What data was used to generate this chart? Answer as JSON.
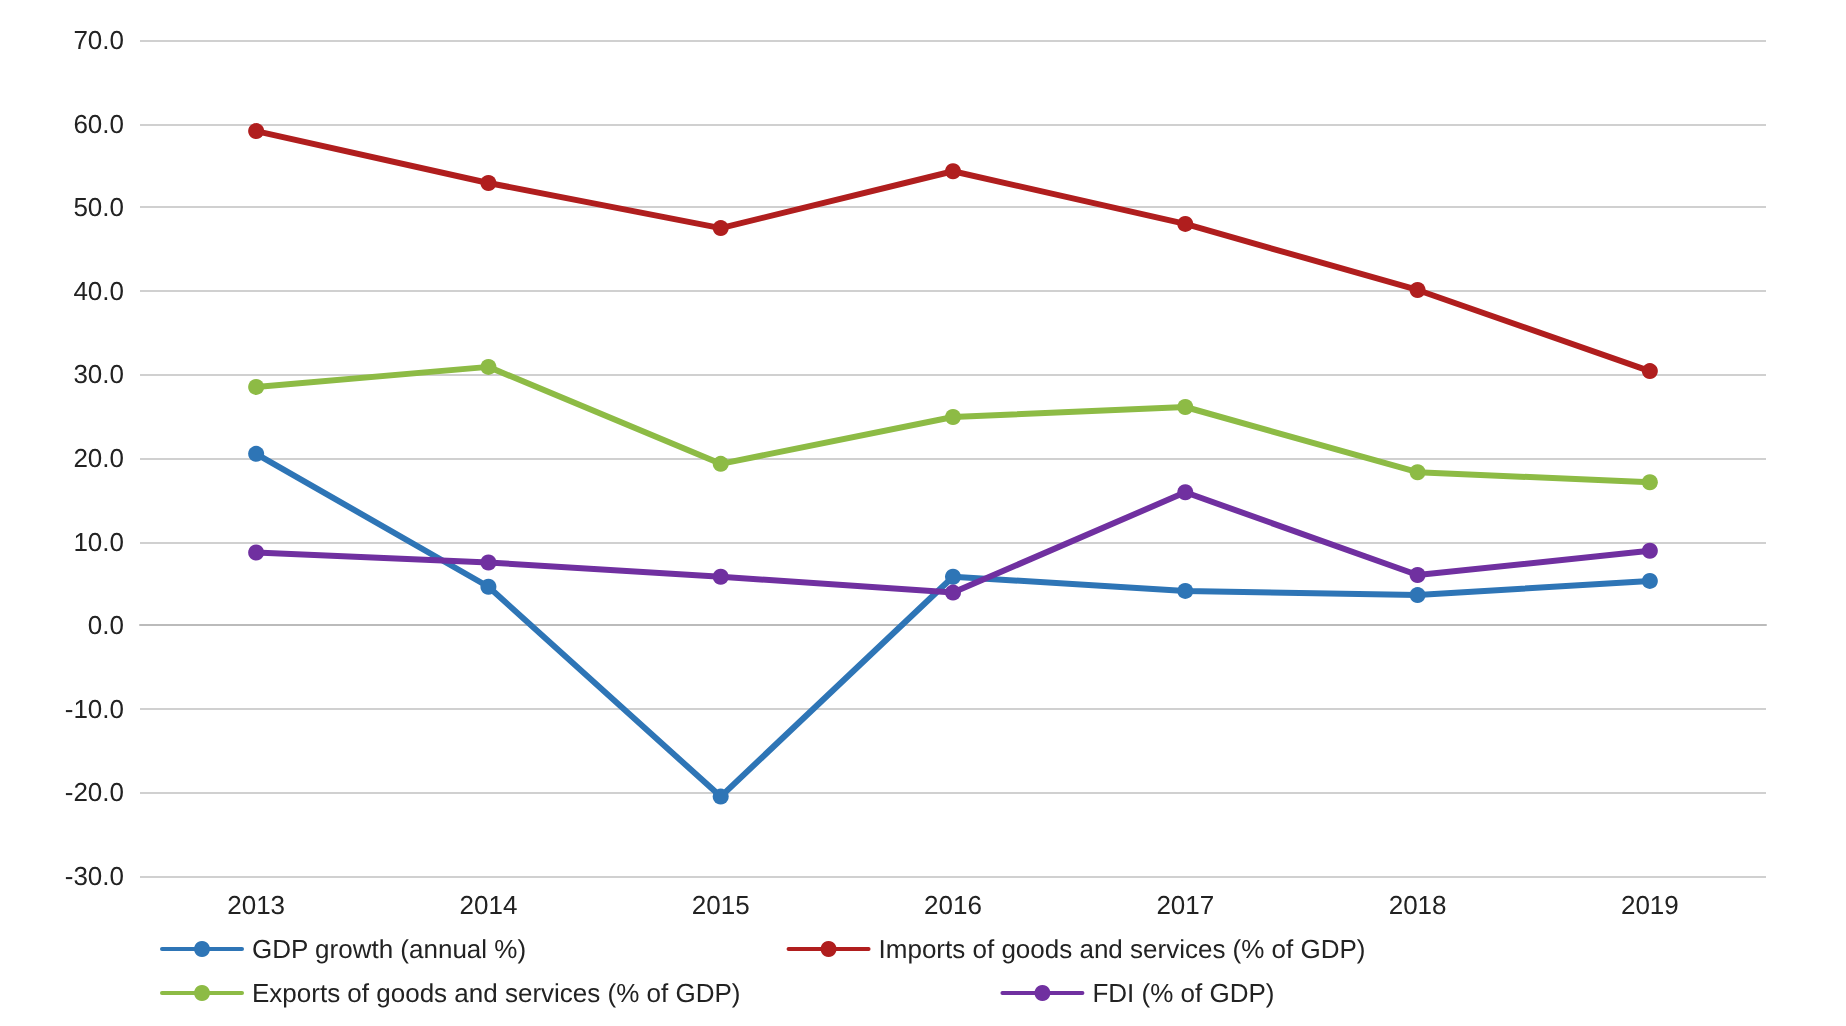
{
  "chart_data": {
    "type": "line",
    "categories": [
      "2013",
      "2014",
      "2015",
      "2016",
      "2017",
      "2018",
      "2019"
    ],
    "series": [
      {
        "name": "GDP growth (annual %)",
        "color": "#2e75b6",
        "values": [
          20.5,
          4.6,
          -20.5,
          5.8,
          4.1,
          3.6,
          5.3
        ]
      },
      {
        "name": "Imports of goods and services (% of GDP)",
        "color": "#b01e1e",
        "values": [
          59.1,
          52.9,
          47.5,
          54.3,
          48.0,
          40.1,
          30.4
        ]
      },
      {
        "name": "Exports of goods and services (% of GDP)",
        "color": "#8dbb45",
        "values": [
          28.5,
          30.9,
          19.3,
          24.9,
          26.1,
          18.3,
          17.1
        ]
      },
      {
        "name": "FDI (% of GDP)",
        "color": "#7030a0",
        "values": [
          8.7,
          7.5,
          5.8,
          3.9,
          15.9,
          6.0,
          8.9
        ]
      }
    ],
    "ylim": [
      -30,
      70
    ],
    "yticks": [
      {
        "value": -30,
        "label": "-30.0"
      },
      {
        "value": -20,
        "label": "-20.0"
      },
      {
        "value": -10,
        "label": "-10.0"
      },
      {
        "value": 0,
        "label": "0.0"
      },
      {
        "value": 10,
        "label": "10.0"
      },
      {
        "value": 20,
        "label": "20.0"
      },
      {
        "value": 30,
        "label": "30.0"
      },
      {
        "value": 40,
        "label": "40.0"
      },
      {
        "value": 50,
        "label": "50.0"
      },
      {
        "value": 60,
        "label": "60.0"
      },
      {
        "value": 70,
        "label": "70.0"
      }
    ],
    "grid": "y",
    "legend": "bottom",
    "marker": "circle",
    "line_style": "solid"
  }
}
